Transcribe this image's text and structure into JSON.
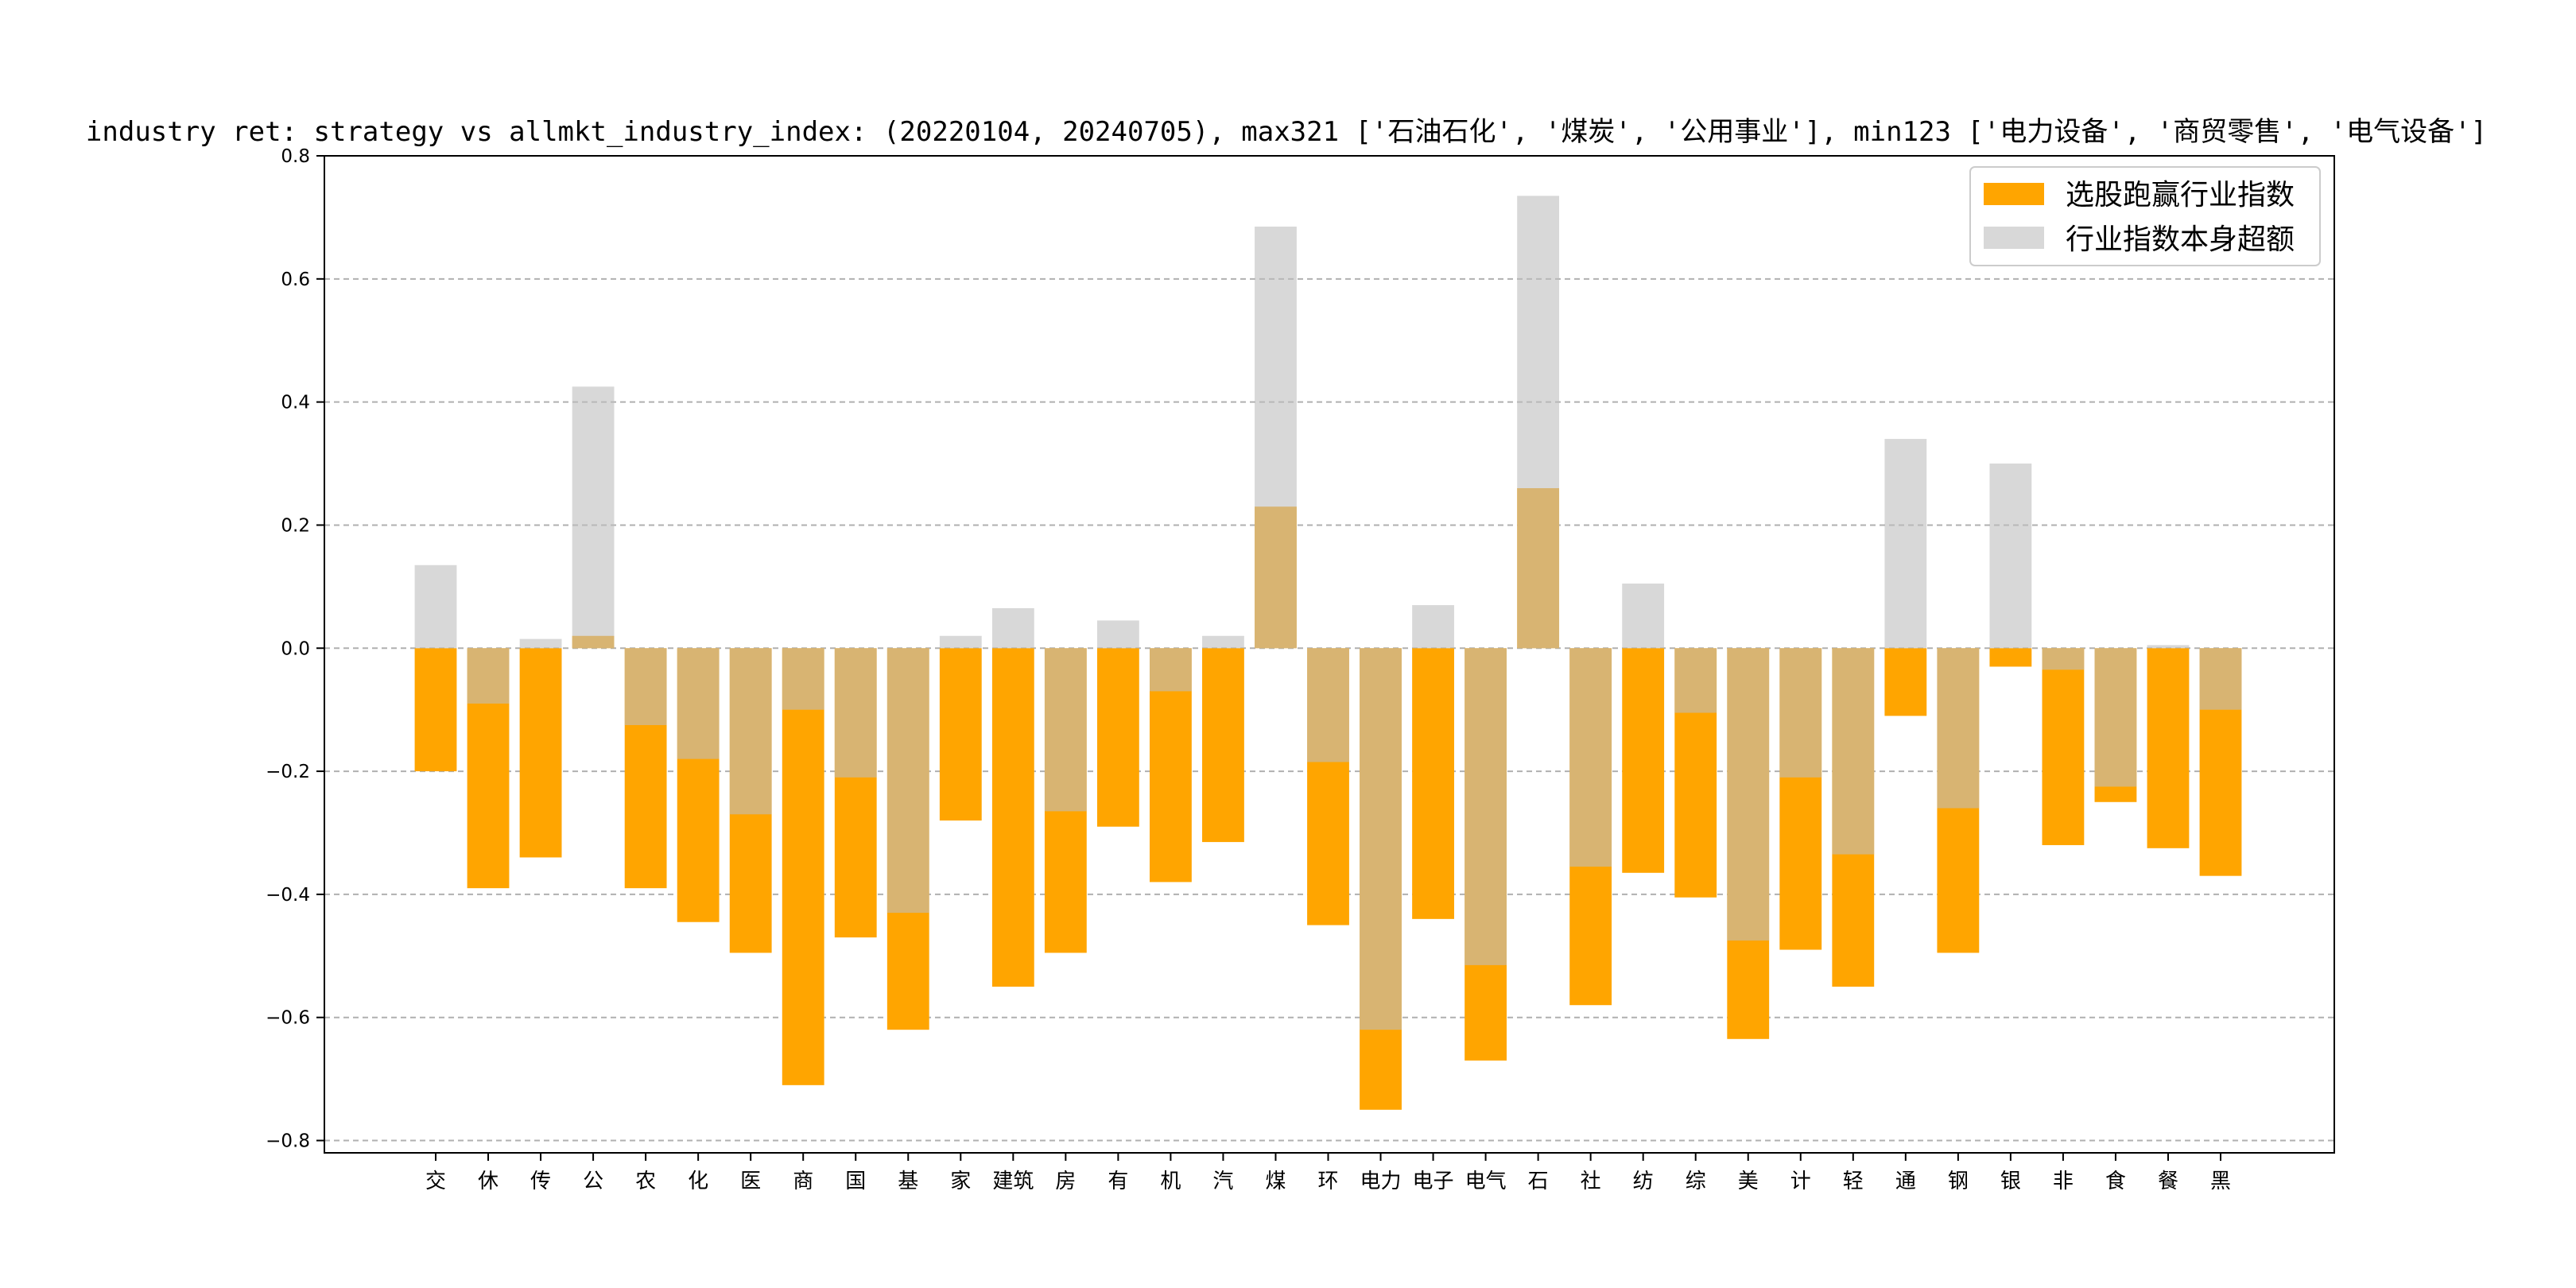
{
  "chart_data": {
    "type": "bar",
    "title": "industry ret: strategy vs allmkt_industry_index: (20220104, 20240705), max321 ['石油石化', '煤炭', '公用事业'], min123 ['电力设备', '商贸零售', '电气设备']",
    "xlabel": "",
    "ylabel": "",
    "ylim": [
      -0.82,
      0.8
    ],
    "yticks": [
      -0.8,
      -0.6,
      -0.4,
      -0.2,
      0.0,
      0.2,
      0.4,
      0.6,
      0.8
    ],
    "ytick_labels": [
      "−0.8",
      "−0.6",
      "−0.4",
      "−0.2",
      "0.0",
      "0.2",
      "0.4",
      "0.6",
      "0.8"
    ],
    "grid": true,
    "legend_position": "top-right",
    "categories": [
      "交",
      "休",
      "传",
      "公",
      "农",
      "化",
      "医",
      "商",
      "国",
      "基",
      "家",
      "建筑",
      "房",
      "有",
      "机",
      "汽",
      "煤",
      "环",
      "电力",
      "电子",
      "电气",
      "石",
      "社",
      "纺",
      "综",
      "美",
      "计",
      "轻",
      "通",
      "钢",
      "银",
      "非",
      "食",
      "餐",
      "黑"
    ],
    "series": [
      {
        "name": "选股跑赢行业指数",
        "color": "#ffa500",
        "values": [
          -0.2,
          -0.39,
          -0.34,
          0.02,
          -0.39,
          -0.445,
          -0.495,
          -0.71,
          -0.47,
          -0.62,
          -0.28,
          -0.55,
          -0.495,
          -0.29,
          -0.38,
          -0.315,
          0.23,
          -0.45,
          -0.75,
          -0.44,
          -0.67,
          0.26,
          -0.58,
          -0.365,
          -0.405,
          -0.635,
          -0.49,
          -0.55,
          -0.11,
          -0.495,
          -0.03,
          -0.32,
          -0.25,
          -0.325,
          -0.37
        ]
      },
      {
        "name": "行业指数本身超额",
        "color": "#bebebe",
        "opacity": 0.6,
        "values": [
          0.135,
          -0.09,
          0.015,
          0.425,
          -0.125,
          -0.18,
          -0.27,
          -0.1,
          -0.21,
          -0.43,
          0.02,
          0.065,
          -0.265,
          0.045,
          -0.07,
          0.02,
          0.685,
          -0.185,
          -0.62,
          0.07,
          -0.515,
          0.735,
          -0.355,
          0.105,
          -0.105,
          -0.475,
          -0.21,
          -0.335,
          0.34,
          -0.26,
          0.3,
          -0.035,
          -0.225,
          0.005,
          -0.1
        ]
      }
    ]
  }
}
